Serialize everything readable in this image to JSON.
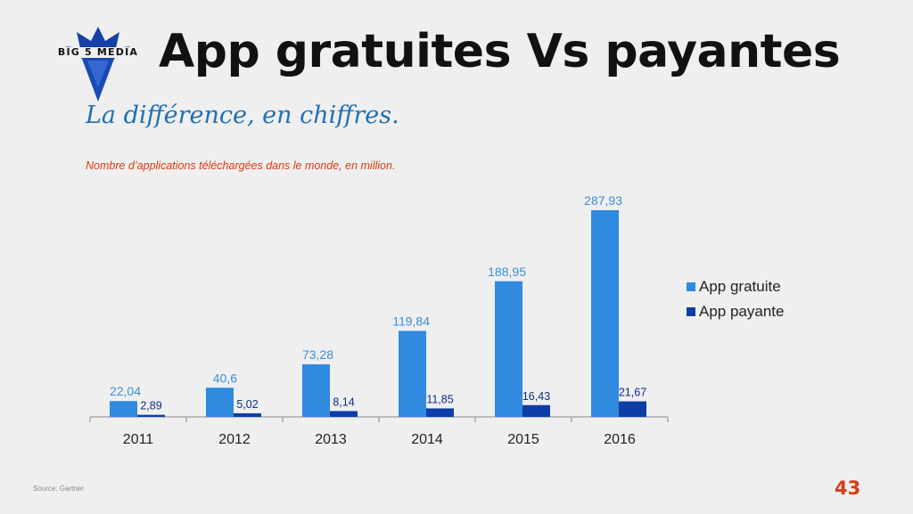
{
  "logo": {
    "text": "BIG 5 MEDIA"
  },
  "header": {
    "title": "App gratuites Vs payantes"
  },
  "subtitle": "La différence, en chiffres.",
  "caption": "Nombre d’applications téléchargées dans le monde, en million.",
  "chart_data": {
    "type": "bar",
    "categories": [
      "2011",
      "2012",
      "2013",
      "2014",
      "2015",
      "2016"
    ],
    "series": [
      {
        "name": "App gratuite",
        "color": "#2f8ae0",
        "values": [
          22.04,
          40.6,
          73.28,
          119.84,
          188.95,
          287.93
        ],
        "labels": [
          "22,04",
          "40,6",
          "73,28",
          "119,84",
          "188,95",
          "287,93"
        ]
      },
      {
        "name": "App payante",
        "color": "#0d3ea8",
        "values": [
          2.89,
          5.02,
          8.14,
          11.85,
          16.43,
          21.67
        ],
        "labels": [
          "2,89",
          "5,02",
          "8,14",
          "11,85",
          "16,43",
          "21,67"
        ]
      }
    ],
    "legend_position": "right",
    "grid": false
  },
  "footer": {
    "source": "Source: Gartner",
    "page_number": "43"
  }
}
